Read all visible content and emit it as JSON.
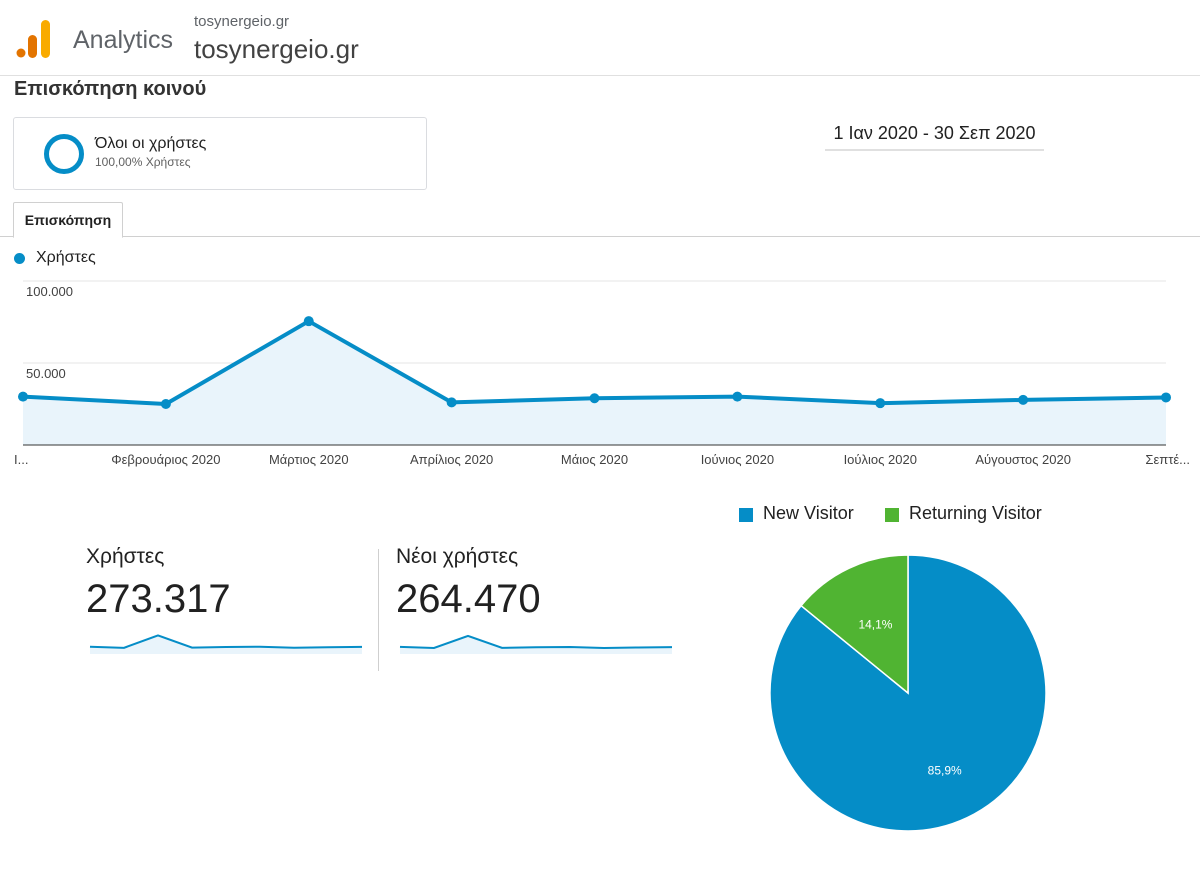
{
  "header": {
    "app_name": "Analytics",
    "account_name": "tosynergeio.gr",
    "property_name": "tosynergeio.gr"
  },
  "page_title": "Επισκόπηση κοινού",
  "segment": {
    "name": "Όλοι οι χρήστες",
    "percentage": "100,00% Χρήστες"
  },
  "date_range": "1 Ιαν 2020 - 30 Σεπ 2020",
  "tabs": [
    {
      "label": "Επισκόπηση",
      "active": true
    }
  ],
  "colors": {
    "primary": "#058dc7",
    "secondary": "#50b432",
    "area_fill": "#e9f4fb"
  },
  "chart_data": [
    {
      "type": "area",
      "series": [
        {
          "name": "Χρήστες",
          "values": [
            29500,
            25000,
            75500,
            26000,
            28500,
            29500,
            25500,
            27500,
            29000
          ]
        }
      ],
      "categories": [
        "Ι...",
        "Φεβρουάριος 2020",
        "Μάρτιος 2020",
        "Απρίλιος 2020",
        "Μάιος 2020",
        "Ιούνιος 2020",
        "Ιούλιος 2020",
        "Αύγουστος 2020",
        "Σεπτέ..."
      ],
      "y_tick_labels": [
        "100.000",
        "50.000"
      ],
      "y_ticks": [
        100000,
        50000
      ],
      "ylim": [
        0,
        100000
      ],
      "grid": true,
      "legend": "top-left"
    },
    {
      "type": "pie",
      "slices": [
        {
          "label": "New Visitor",
          "value": 85.9,
          "display": "85,9%",
          "color": "#058dc7"
        },
        {
          "label": "Returning Visitor",
          "value": 14.1,
          "display": "14,1%",
          "color": "#50b432"
        }
      ],
      "legend": "top"
    }
  ],
  "metrics": [
    {
      "label": "Χρήστες",
      "value": "273.317",
      "spark": [
        29500,
        25000,
        75500,
        26000,
        28500,
        29500,
        25500,
        27500,
        29000
      ]
    },
    {
      "label": "Νέοι χρήστες",
      "value": "264.470",
      "spark": [
        29000,
        24500,
        73500,
        25000,
        27500,
        28500,
        24500,
        26500,
        28000
      ]
    }
  ]
}
